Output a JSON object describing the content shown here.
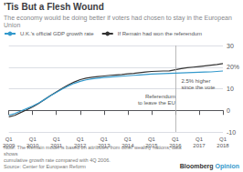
{
  "chart_data": {
    "type": "line",
    "title": "'Tis But a Flesh Wound",
    "subtitle": "The economy would be doing better if voters had chosen to stay in the European Union",
    "categories": [
      "Q1\n2009",
      null,
      null,
      null,
      "Q1\n2010",
      null,
      null,
      null,
      "Q1\n2011",
      null,
      null,
      null,
      "Q1\n2012",
      null,
      null,
      null,
      "Q1\n2013",
      null,
      null,
      null,
      "Q1\n2014",
      null,
      null,
      null,
      "Q1\n2015",
      null,
      null,
      null,
      "Q1\n2016",
      null,
      null,
      null,
      "Q1\n2017",
      null,
      null,
      null,
      "Q1\n2018"
    ],
    "series": [
      {
        "name": "U.K.'s official GDP growth rate",
        "color": "#3399cc",
        "values": [
          -2.2,
          -1.5,
          -0.3,
          0.8,
          2.0,
          3.4,
          5.0,
          6.7,
          8.3,
          9.9,
          11.3,
          12.5,
          13.4,
          14.1,
          14.6,
          14.9,
          15.2,
          15.4,
          15.6,
          15.8,
          16.0,
          16.2,
          16.4,
          16.6,
          16.8,
          16.9,
          17.0,
          17.1,
          17.2,
          17.3,
          17.4,
          17.5,
          17.6,
          17.7,
          17.8,
          18.0,
          18.2
        ]
      },
      {
        "name": "If Remain had won the referendum",
        "color": "#333333",
        "values": [
          -3.0,
          -2.3,
          -1.0,
          0.2,
          1.6,
          3.2,
          5.0,
          6.8,
          8.5,
          10.2,
          11.8,
          13.1,
          14.2,
          14.9,
          15.3,
          15.6,
          15.9,
          16.2,
          16.4,
          16.6,
          16.9,
          17.1,
          17.4,
          17.7,
          18.0,
          18.1,
          18.2,
          18.3,
          18.8,
          19.3,
          19.7,
          20.0,
          20.3,
          20.6,
          20.9,
          21.2,
          21.6
        ]
      }
    ],
    "ylim": [
      -10,
      30
    ],
    "yticks": [
      -10,
      0,
      10,
      {
        "value": 20,
        "label": "20%"
      },
      30
    ],
    "grid": true,
    "legend": "upper left",
    "annotations": [
      {
        "text": "Referendum\nto leave the EU",
        "x": 28
      },
      {
        "text": "2.5% higher\nsince the vote"
      }
    ],
    "note": "Note: The Remain model is based on attributes from other wealthy nations; data shows\ncumulative growth rate compared with 4Q 2006.\nSource: Center for European Reform",
    "source": [
      {
        "text": "Bloomberg",
        "color": "#333333"
      },
      {
        "text": "Opinion",
        "color": "#3399cc"
      }
    ]
  }
}
